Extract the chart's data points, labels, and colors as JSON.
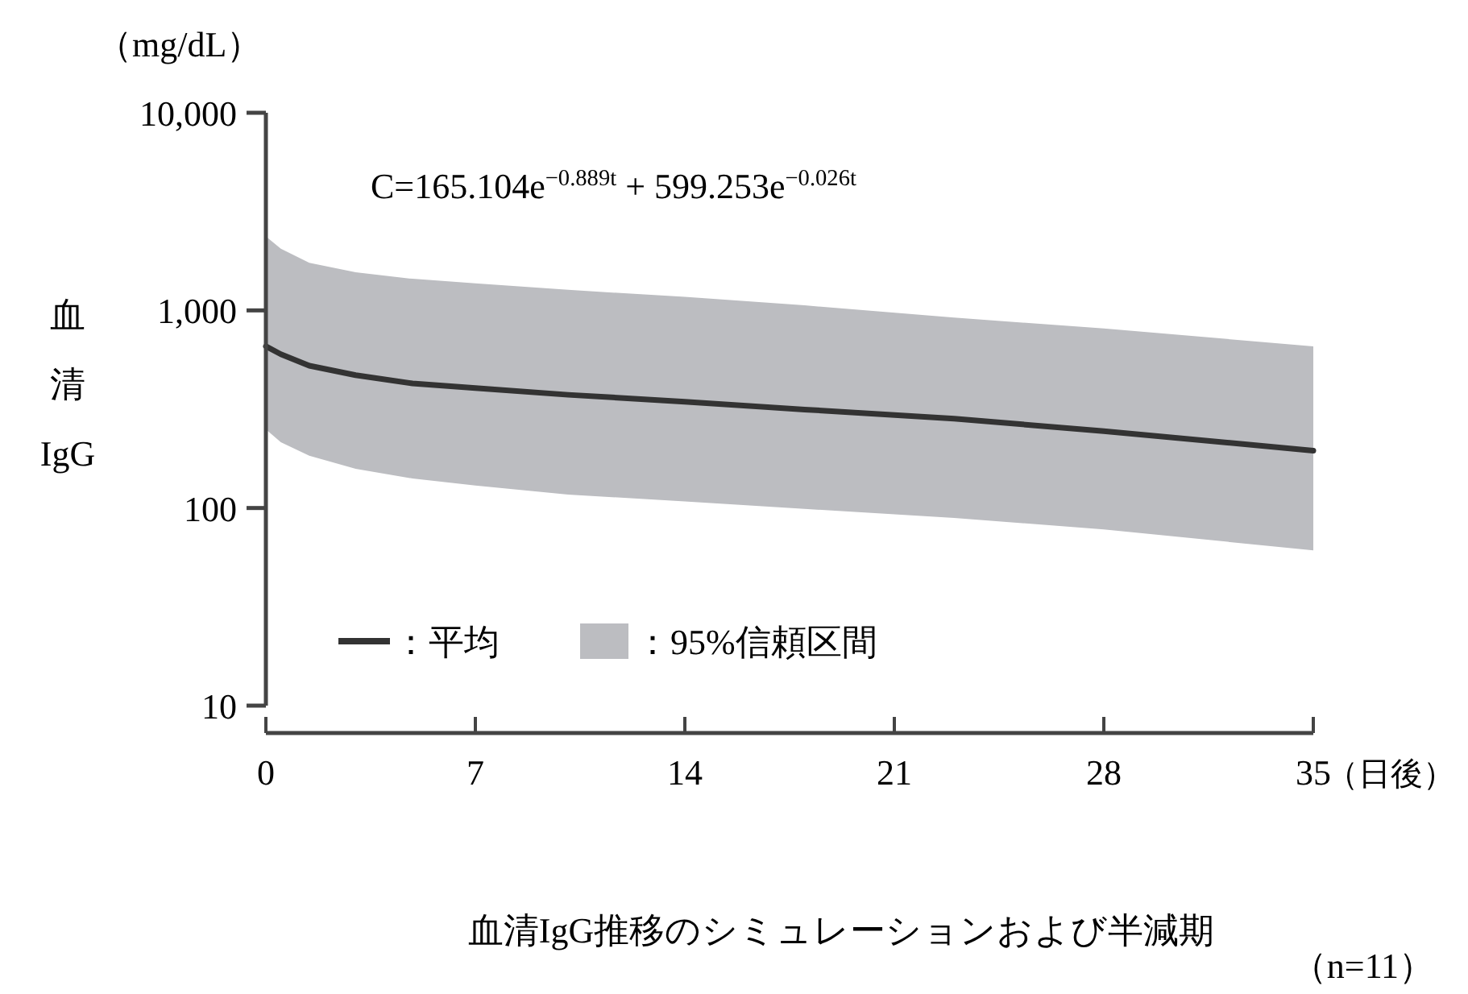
{
  "chart_data": {
    "type": "line",
    "title": "血清IgG推移のシミュレーションおよび半減期",
    "ylabel": "血清IgG",
    "xlabel": "（日後）",
    "annotations": [
      "（mg/dL）",
      "C=165.104e$^{−0.889t}$ + 599.253e$^{−0.026t}$",
      "（n=11）"
    ],
    "x": [
      0,
      0.5,
      1.45,
      3,
      4.9,
      7,
      10.1,
      14,
      18,
      23,
      28,
      35
    ],
    "series": [
      {
        "name": "：平均",
        "type": "line",
        "color": "#333333",
        "values": [
          658,
          600,
          525,
          470,
          427,
          405,
          374,
          345,
          315,
          283,
          245,
          195
        ],
        "lower": [
          250,
          215,
          184,
          158,
          141,
          130,
          117,
          108,
          99,
          89,
          78,
          61
        ],
        "upper": [
          2370,
          2050,
          1740,
          1560,
          1445,
          1370,
          1270,
          1170,
          1060,
          920,
          810,
          658
        ]
      },
      {
        "name": "：95%信頼区間",
        "type": "area",
        "color": "#bcbdc1",
        "values": [
          null,
          null,
          null,
          null,
          null,
          null,
          null,
          null,
          null,
          null,
          null,
          null
        ]
      }
    ],
    "xlim": [
      0,
      35
    ],
    "xticks": [
      0,
      7,
      14,
      21,
      28,
      35
    ],
    "ylim": [
      10,
      10000
    ],
    "yticks": [
      {
        "value": 10,
        "label": "10"
      },
      {
        "value": 100,
        "label": "100"
      },
      {
        "value": 1000,
        "label": "1,000"
      },
      {
        "value": 10000,
        "label": "10,000"
      }
    ],
    "log": "y",
    "grid": false,
    "legend": "bottom left"
  }
}
